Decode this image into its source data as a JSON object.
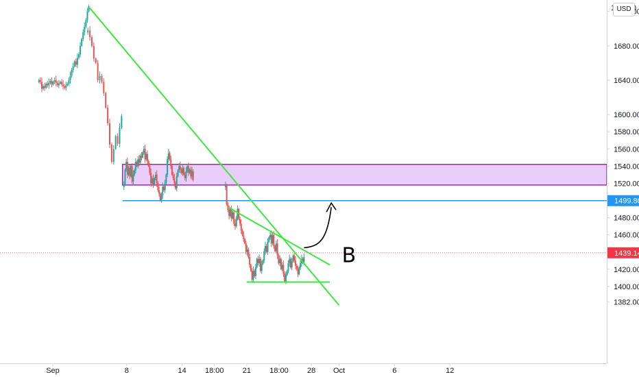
{
  "chart_data": {
    "type": "candlestick",
    "currency": "USD",
    "top_tick_partial": "1",
    "top_tick_partial_suffix": "0",
    "ylim": [
      1372,
      1762
    ],
    "x_ticks": [
      "Sep",
      "8",
      "14",
      "18:00",
      "21",
      "18:00",
      "28",
      "Oct",
      "6",
      "12"
    ],
    "y_ticks": [
      "1720.00",
      "1680.00",
      "1640.00",
      "1600.00",
      "1580.00",
      "1560.00",
      "1540.00",
      "1520.00",
      "1480.00",
      "1460.00",
      "1420.00",
      "1400.00",
      "1382.00"
    ],
    "price_labels": [
      {
        "value": 1499.8,
        "label": "1499.80",
        "color": "#2196f3"
      },
      {
        "value": 1439.14,
        "label": "1439.14",
        "color": "#f23645"
      }
    ],
    "colors": {
      "up": "#26a69a",
      "down": "#ef5350",
      "trendline": "#3fe63f",
      "zone_fill": "#e1bdf7",
      "zone_border": "#9c27b0",
      "horizontal": "#2196f3",
      "last_price": "#f23645",
      "annotation": "#000000"
    },
    "resistance_zone": {
      "from": 1518,
      "to": 1542
    },
    "horizontal_line": 1499.8,
    "annotation_text": "B",
    "close_series": [
      1640,
      1638,
      1630,
      1633,
      1631,
      1636,
      1634,
      1637,
      1639,
      1635,
      1638,
      1640,
      1637,
      1634,
      1636,
      1638,
      1635,
      1633,
      1631,
      1634,
      1636,
      1640,
      1645,
      1652,
      1656,
      1662,
      1658,
      1666,
      1670,
      1680,
      1688,
      1696,
      1702,
      1710,
      1720,
      1726,
      1698,
      1690,
      1680,
      1665,
      1660,
      1640,
      1645,
      1638,
      1625,
      1608,
      1590,
      1565,
      1545,
      1560,
      1575,
      1566,
      1585,
      1598,
      1518,
      1536,
      1545,
      1530,
      1538,
      1528,
      1540,
      1522,
      1530,
      1535,
      1545,
      1540,
      1548,
      1544,
      1552,
      1550,
      1556,
      1560,
      1548,
      1554,
      1546,
      1540,
      1532,
      1520,
      1526,
      1518,
      1526,
      1530,
      1520,
      1512,
      1508,
      1500,
      1506,
      1516,
      1512,
      1520,
      1530,
      1548,
      1555,
      1548,
      1540,
      1530,
      1526,
      1520,
      1514,
      1528,
      1535,
      1540,
      1536,
      1532,
      1538,
      1530,
      1526,
      1534,
      1540,
      1532,
      1536,
      1528,
      1534,
      1524,
      1518,
      1495,
      1489,
      1482,
      1490,
      1479,
      1486,
      1473,
      1470,
      1480,
      1490,
      1478,
      1473,
      1465,
      1460,
      1455,
      1450,
      1440,
      1443,
      1434,
      1425,
      1418,
      1408,
      1418,
      1412,
      1422,
      1432,
      1427,
      1432,
      1418,
      1426,
      1430,
      1441,
      1447,
      1440,
      1452,
      1457,
      1460,
      1450,
      1460,
      1447,
      1441,
      1450,
      1436,
      1427,
      1432,
      1420,
      1425,
      1415,
      1406,
      1413,
      1418,
      1427,
      1432,
      1422,
      1429,
      1436,
      1430,
      1424,
      1420,
      1414,
      1422,
      1427,
      1432,
      1428,
      1434,
      1439
    ],
    "trendlines": [
      {
        "from": {
          "x": "2020-09-04",
          "y": 1724
        },
        "to": {
          "x": "2020-10-01",
          "y": 1378
        }
      },
      {
        "from": {
          "x": "2020-09-19",
          "y": 1492
        },
        "to": {
          "x": "2020-09-30",
          "y": 1425
        }
      },
      {
        "from": {
          "x": "2020-09-21",
          "y": 1405
        },
        "to": {
          "x": "2020-09-30",
          "y": 1405
        }
      }
    ]
  }
}
